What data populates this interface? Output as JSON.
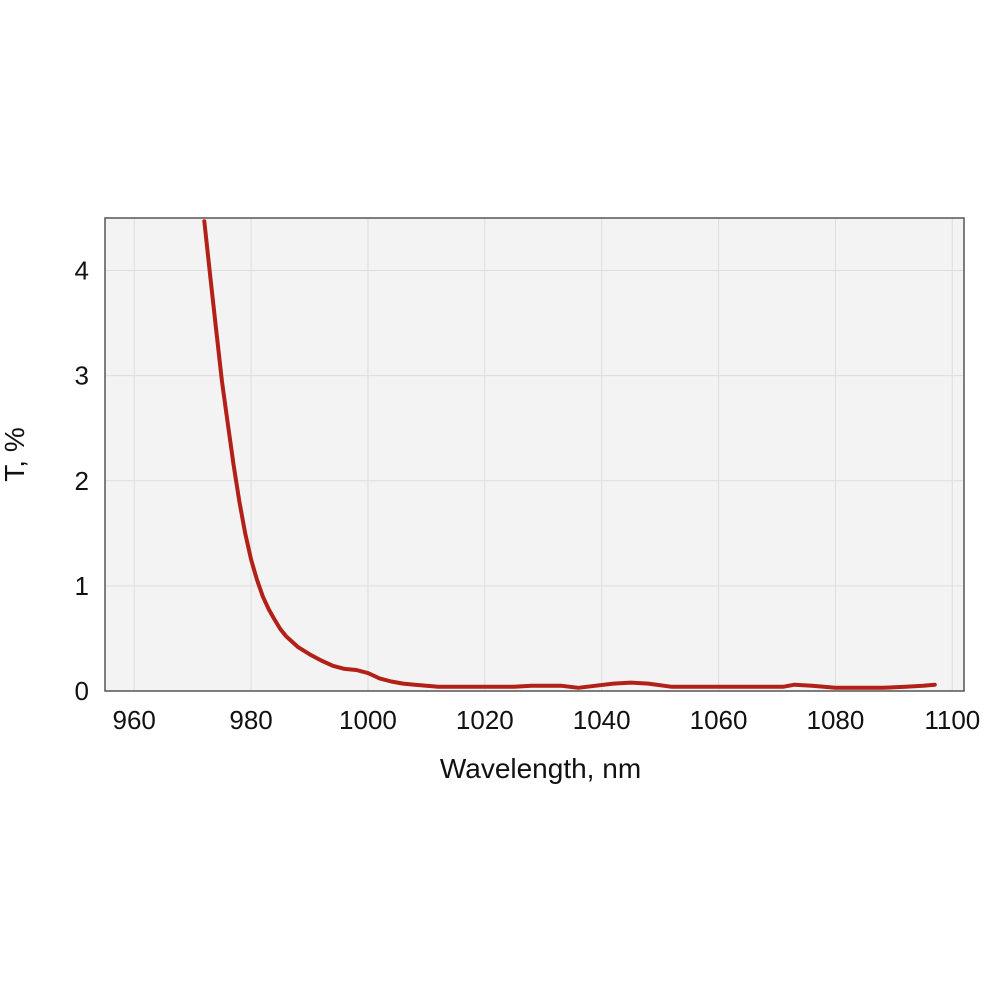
{
  "chart_data": {
    "type": "line",
    "title": "",
    "xlabel": "Wavelength, nm",
    "ylabel": "T, %",
    "xlim": [
      955,
      1102
    ],
    "ylim": [
      0,
      4.5
    ],
    "xticks": [
      960,
      980,
      1000,
      1020,
      1040,
      1060,
      1080,
      1100
    ],
    "yticks": [
      0,
      1,
      2,
      3,
      4
    ],
    "grid": true,
    "legend": "none",
    "colors": {
      "line": "#b22018",
      "plot_bg": "#f3f3f3",
      "grid": "#dddddd",
      "frame": "#555555"
    },
    "series": [
      {
        "x": [
          972,
          973,
          974,
          975,
          976,
          977,
          978,
          979,
          980,
          981,
          982,
          983,
          984,
          985,
          986,
          988,
          990,
          992,
          994,
          996,
          998,
          1000,
          1002,
          1004,
          1006,
          1008,
          1010,
          1012,
          1015,
          1020,
          1025,
          1028,
          1030,
          1033,
          1036,
          1039,
          1042,
          1045,
          1048,
          1052,
          1056,
          1060,
          1064,
          1068,
          1071,
          1073,
          1076,
          1080,
          1084,
          1088,
          1092,
          1095,
          1097
        ],
        "y": [
          4.47,
          3.95,
          3.45,
          2.95,
          2.55,
          2.15,
          1.8,
          1.5,
          1.25,
          1.06,
          0.9,
          0.78,
          0.68,
          0.59,
          0.52,
          0.42,
          0.35,
          0.29,
          0.24,
          0.21,
          0.2,
          0.17,
          0.12,
          0.09,
          0.07,
          0.06,
          0.05,
          0.04,
          0.04,
          0.04,
          0.04,
          0.05,
          0.05,
          0.05,
          0.03,
          0.05,
          0.07,
          0.08,
          0.07,
          0.04,
          0.04,
          0.04,
          0.04,
          0.04,
          0.04,
          0.06,
          0.05,
          0.03,
          0.03,
          0.03,
          0.04,
          0.05,
          0.06
        ]
      }
    ]
  }
}
